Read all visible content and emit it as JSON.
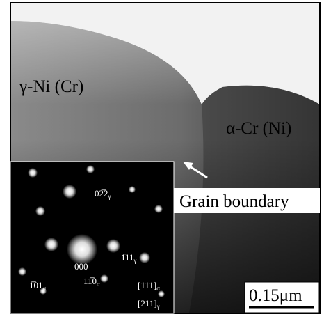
{
  "labels": {
    "gamma_phase": "γ-Ni (Cr)",
    "alpha_phase": "α-Cr (Ni)",
    "boundary": "Grain boundary",
    "scale_bar": "0.15μm"
  },
  "diffraction_labels": [
    {
      "index": "02̅2",
      "phase": "γ"
    },
    {
      "index": "1̅11",
      "phase": "γ"
    },
    {
      "index": "000"
    },
    {
      "index": "1̅01",
      "phase": "α"
    },
    {
      "index": "11̅0",
      "phase": "α"
    },
    {
      "index": "[111]",
      "phase": "α"
    },
    {
      "index": "[211]",
      "phase": "γ"
    }
  ]
}
